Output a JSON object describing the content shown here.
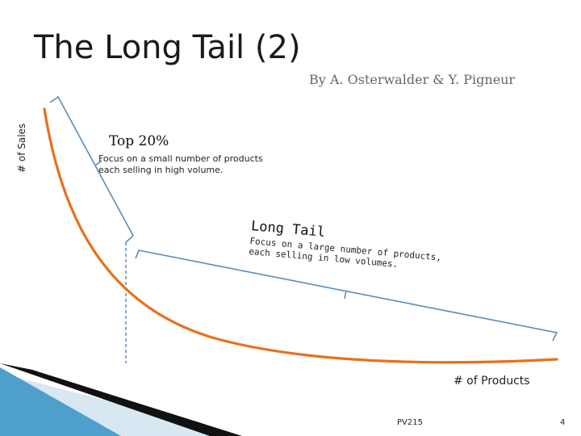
{
  "slide": {
    "title": "The Long Tail (2)",
    "byline": "By A. Osterwalder & Y. Pigneur",
    "y_axis_label": "# of Sales",
    "x_axis_label": "# of Products",
    "head": {
      "title": "Top 20%",
      "description": "Focus on a small number of products\neach selling in high volume."
    },
    "tail": {
      "title": "Long Tail",
      "description": "Focus on a large number of products,\neach selling in low volumes."
    },
    "footer": "PV215",
    "page_number": "4"
  },
  "colors": {
    "curve": "#e8701c",
    "bracket": "#5b8bb8",
    "divider": "#4a7ab0",
    "text": "#222222"
  }
}
